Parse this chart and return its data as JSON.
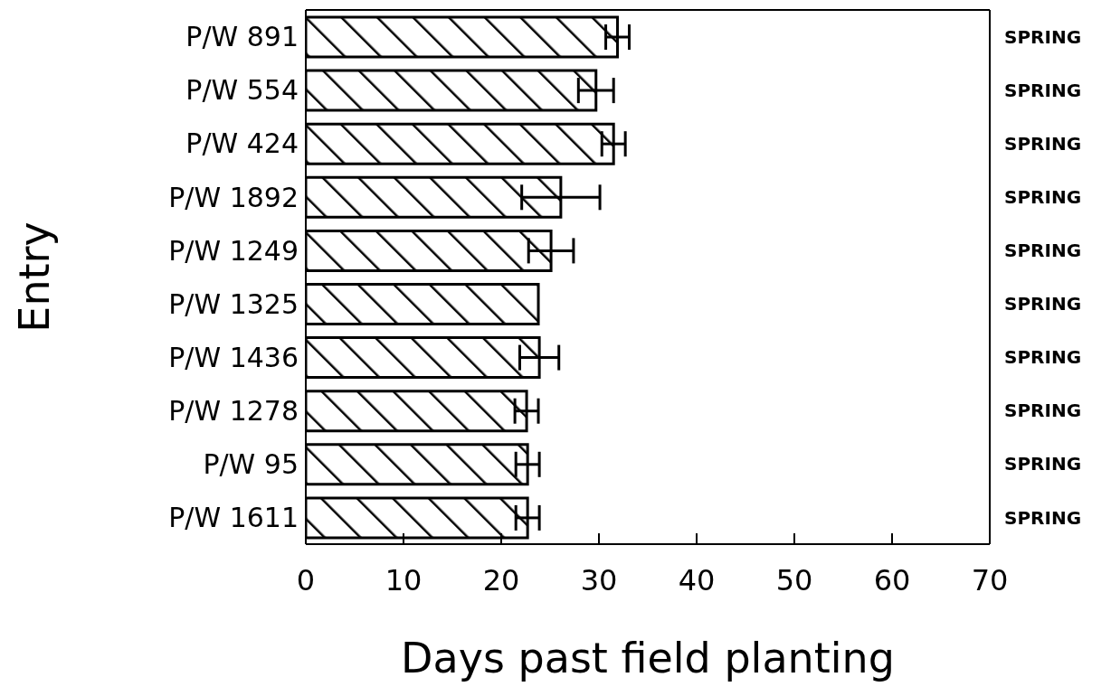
{
  "chart_data": {
    "type": "bar",
    "orientation": "horizontal",
    "xlabel": "Days past field planting",
    "ylabel": "Entry",
    "categories": [
      "P/W  891",
      "P/W  554",
      "P/W  424",
      "P/W 1892",
      "P/W 1249",
      "P/W 1325",
      "P/W 1436",
      "P/W 1278",
      "P/W   95",
      "P/W 1611"
    ],
    "values": [
      31.9,
      29.7,
      31.5,
      26.1,
      25.1,
      23.8,
      23.9,
      22.6,
      22.7,
      22.7
    ],
    "errors": [
      1.2,
      1.8,
      1.2,
      4,
      2.3,
      null,
      2,
      1.2,
      1.2,
      1.2
    ],
    "color": "#000000",
    "xlim": [
      0,
      70
    ],
    "xticks": [
      0,
      10,
      20,
      30,
      40,
      50,
      60,
      70
    ],
    "annotations": [
      "SPRING",
      "SPRING",
      "SPRING",
      "SPRING",
      "SPRING",
      "SPRING",
      "SPRING",
      "SPRING",
      "SPRING",
      "SPRING"
    ],
    "stacked": false
  }
}
